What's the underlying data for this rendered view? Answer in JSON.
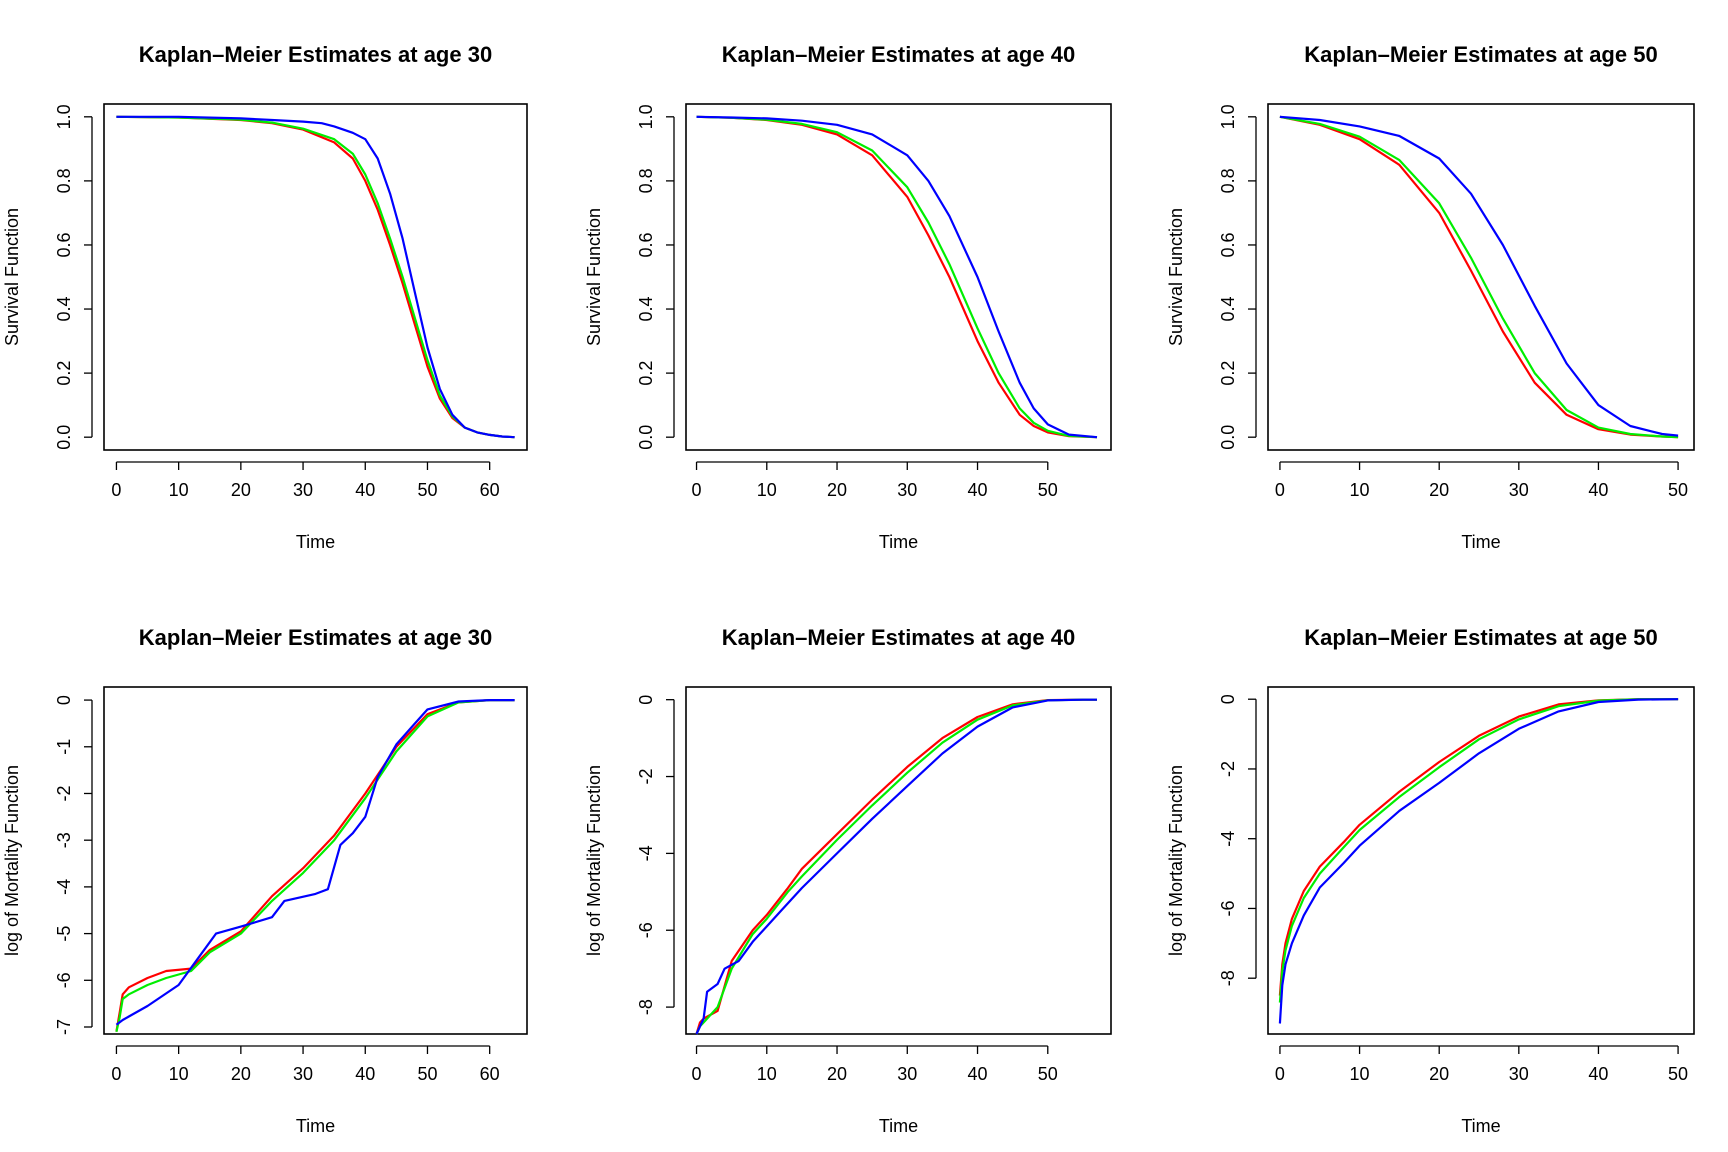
{
  "figure": {
    "series_colors": {
      "red": "#ff0000",
      "green": "#00ee00",
      "blue": "#0000ff"
    }
  },
  "chart_data": [
    {
      "type": "line",
      "title": "Kaplan–Meier Estimates at age 30",
      "xlabel": "Time",
      "ylabel": "Survival Function",
      "xlim": [
        -2,
        66
      ],
      "ylim": [
        -0.04,
        1.04
      ],
      "xticks": [
        0,
        10,
        20,
        30,
        40,
        50,
        60
      ],
      "yticks": [
        "0.0",
        "0.2",
        "0.4",
        "0.6",
        "0.8",
        "1.0"
      ],
      "grid": false,
      "series": [
        {
          "color": "#ff0000",
          "x": [
            0,
            10,
            20,
            25,
            30,
            35,
            38,
            40,
            42,
            44,
            46,
            48,
            50,
            52,
            54,
            56,
            58,
            60,
            62,
            64
          ],
          "y": [
            1.0,
            0.998,
            0.99,
            0.98,
            0.96,
            0.92,
            0.87,
            0.8,
            0.71,
            0.6,
            0.48,
            0.35,
            0.22,
            0.12,
            0.06,
            0.03,
            0.015,
            0.007,
            0.002,
            0.0
          ]
        },
        {
          "color": "#00ee00",
          "x": [
            0,
            10,
            20,
            25,
            30,
            35,
            38,
            40,
            42,
            44,
            46,
            48,
            50,
            52,
            54,
            56,
            58,
            60,
            62,
            64
          ],
          "y": [
            1.0,
            0.998,
            0.991,
            0.982,
            0.963,
            0.93,
            0.885,
            0.82,
            0.73,
            0.62,
            0.5,
            0.37,
            0.24,
            0.13,
            0.065,
            0.03,
            0.015,
            0.007,
            0.002,
            0.0
          ]
        },
        {
          "color": "#0000ff",
          "x": [
            0,
            10,
            20,
            25,
            30,
            33,
            35,
            38,
            40,
            42,
            44,
            46,
            48,
            50,
            52,
            54,
            56,
            58,
            60,
            62,
            64
          ],
          "y": [
            1.0,
            1.0,
            0.995,
            0.99,
            0.985,
            0.98,
            0.97,
            0.95,
            0.93,
            0.87,
            0.76,
            0.62,
            0.45,
            0.28,
            0.15,
            0.07,
            0.03,
            0.015,
            0.007,
            0.002,
            0.0
          ]
        }
      ]
    },
    {
      "type": "line",
      "title": "Kaplan–Meier Estimates at age 40",
      "xlabel": "Time",
      "ylabel": "Survival Function",
      "xlim": [
        -1.5,
        59
      ],
      "ylim": [
        -0.04,
        1.04
      ],
      "xticks": [
        0,
        10,
        20,
        30,
        40,
        50
      ],
      "yticks": [
        "0.0",
        "0.2",
        "0.4",
        "0.6",
        "0.8",
        "1.0"
      ],
      "grid": false,
      "series": [
        {
          "color": "#ff0000",
          "x": [
            0,
            5,
            10,
            15,
            20,
            25,
            30,
            33,
            36,
            40,
            43,
            46,
            48,
            50,
            53,
            57
          ],
          "y": [
            1.0,
            0.997,
            0.99,
            0.975,
            0.945,
            0.88,
            0.75,
            0.63,
            0.5,
            0.3,
            0.17,
            0.07,
            0.035,
            0.015,
            0.003,
            0.0
          ]
        },
        {
          "color": "#00ee00",
          "x": [
            0,
            5,
            10,
            15,
            20,
            25,
            30,
            33,
            36,
            40,
            43,
            46,
            48,
            50,
            53,
            57
          ],
          "y": [
            1.0,
            0.997,
            0.991,
            0.978,
            0.952,
            0.895,
            0.78,
            0.67,
            0.54,
            0.34,
            0.2,
            0.09,
            0.045,
            0.02,
            0.004,
            0.0
          ]
        },
        {
          "color": "#0000ff",
          "x": [
            0,
            5,
            10,
            15,
            20,
            25,
            30,
            33,
            36,
            40,
            43,
            46,
            48,
            50,
            53,
            57
          ],
          "y": [
            1.0,
            0.998,
            0.995,
            0.988,
            0.975,
            0.945,
            0.88,
            0.8,
            0.69,
            0.5,
            0.33,
            0.17,
            0.09,
            0.04,
            0.008,
            0.0
          ]
        }
      ]
    },
    {
      "type": "line",
      "title": "Kaplan–Meier Estimates at age 50",
      "xlabel": "Time",
      "ylabel": "Survival Function",
      "xlim": [
        -1.5,
        52
      ],
      "ylim": [
        -0.04,
        1.04
      ],
      "xticks": [
        0,
        10,
        20,
        30,
        40,
        50
      ],
      "yticks": [
        "0.0",
        "0.2",
        "0.4",
        "0.6",
        "0.8",
        "1.0"
      ],
      "grid": false,
      "series": [
        {
          "color": "#ff0000",
          "x": [
            0,
            5,
            10,
            15,
            20,
            24,
            28,
            32,
            36,
            40,
            44,
            48,
            50
          ],
          "y": [
            1.0,
            0.975,
            0.93,
            0.85,
            0.7,
            0.52,
            0.33,
            0.17,
            0.07,
            0.025,
            0.008,
            0.002,
            0.0
          ]
        },
        {
          "color": "#00ee00",
          "x": [
            0,
            5,
            10,
            15,
            20,
            24,
            28,
            32,
            36,
            40,
            44,
            48,
            50
          ],
          "y": [
            1.0,
            0.978,
            0.938,
            0.865,
            0.73,
            0.56,
            0.37,
            0.2,
            0.085,
            0.03,
            0.01,
            0.002,
            0.0
          ]
        },
        {
          "color": "#0000ff",
          "x": [
            0,
            5,
            10,
            15,
            20,
            24,
            28,
            32,
            36,
            40,
            44,
            48,
            50
          ],
          "y": [
            1.0,
            0.99,
            0.97,
            0.94,
            0.87,
            0.76,
            0.6,
            0.41,
            0.23,
            0.1,
            0.035,
            0.01,
            0.005
          ]
        }
      ]
    },
    {
      "type": "line",
      "title": "Kaplan–Meier Estimates at age 30",
      "xlabel": "Time",
      "ylabel": "log of Mortality Function",
      "xlim": [
        -2,
        66
      ],
      "ylim": [
        -7.15,
        0.28
      ],
      "xticks": [
        0,
        10,
        20,
        30,
        40,
        50,
        60
      ],
      "yticks": [
        "0",
        "-1",
        "-2",
        "-3",
        "-4",
        "-5",
        "-6",
        "-7"
      ],
      "grid": false,
      "series": [
        {
          "color": "#ff0000",
          "x": [
            0,
            0.5,
            1,
            2,
            5,
            8,
            12,
            15,
            20,
            25,
            30,
            35,
            40,
            45,
            50,
            55,
            60,
            64
          ],
          "y": [
            -7.1,
            -6.7,
            -6.3,
            -6.15,
            -5.95,
            -5.8,
            -5.75,
            -5.35,
            -4.95,
            -4.2,
            -3.6,
            -2.9,
            -2.0,
            -1.0,
            -0.3,
            -0.05,
            0.0,
            0.0
          ]
        },
        {
          "color": "#00ee00",
          "x": [
            0,
            0.5,
            1,
            2,
            5,
            8,
            12,
            15,
            20,
            25,
            30,
            35,
            40,
            45,
            50,
            55,
            60,
            64
          ],
          "y": [
            -7.1,
            -6.8,
            -6.4,
            -6.3,
            -6.1,
            -5.95,
            -5.8,
            -5.4,
            -5.0,
            -4.3,
            -3.7,
            -3.0,
            -2.1,
            -1.1,
            -0.35,
            -0.05,
            0.0,
            0.0
          ]
        },
        {
          "color": "#0000ff",
          "x": [
            0,
            1,
            5,
            10,
            13,
            16,
            20,
            25,
            27,
            32,
            34,
            36,
            38,
            40,
            42,
            45,
            48,
            50,
            55,
            60,
            64
          ],
          "y": [
            -6.95,
            -6.85,
            -6.55,
            -6.1,
            -5.55,
            -5.0,
            -4.85,
            -4.65,
            -4.3,
            -4.15,
            -4.05,
            -3.1,
            -2.85,
            -2.5,
            -1.65,
            -0.95,
            -0.5,
            -0.2,
            -0.03,
            0.0,
            0.0
          ]
        }
      ]
    },
    {
      "type": "line",
      "title": "Kaplan–Meier Estimates at age 40",
      "xlabel": "Time",
      "ylabel": "log of Mortality Function",
      "xlim": [
        -1.5,
        59
      ],
      "ylim": [
        -8.7,
        0.33
      ],
      "xticks": [
        0,
        10,
        20,
        30,
        40,
        50
      ],
      "yticks": [
        "0",
        "-2",
        "-4",
        "-6",
        "-8"
      ],
      "grid": false,
      "series": [
        {
          "color": "#ff0000",
          "x": [
            0,
            0.5,
            1,
            3,
            5,
            8,
            10,
            13,
            15,
            20,
            25,
            30,
            35,
            40,
            45,
            50,
            55,
            57
          ],
          "y": [
            -8.7,
            -8.4,
            -8.3,
            -8.1,
            -6.8,
            -6.0,
            -5.6,
            -4.9,
            -4.4,
            -3.5,
            -2.6,
            -1.75,
            -1.0,
            -0.45,
            -0.12,
            -0.01,
            0.0,
            0.0
          ]
        },
        {
          "color": "#00ee00",
          "x": [
            0,
            0.5,
            1,
            3,
            5,
            8,
            10,
            13,
            15,
            20,
            25,
            30,
            35,
            40,
            45,
            50,
            55,
            57
          ],
          "y": [
            -8.7,
            -8.5,
            -8.4,
            -8.0,
            -7.0,
            -6.1,
            -5.7,
            -5.0,
            -4.6,
            -3.65,
            -2.75,
            -1.9,
            -1.12,
            -0.52,
            -0.15,
            -0.015,
            0.0,
            0.0
          ]
        },
        {
          "color": "#0000ff",
          "x": [
            0,
            1,
            1.5,
            3,
            4,
            6,
            8,
            10,
            12,
            15,
            20,
            25,
            30,
            35,
            40,
            45,
            50,
            55,
            57
          ],
          "y": [
            -8.7,
            -8.3,
            -7.6,
            -7.4,
            -7.0,
            -6.8,
            -6.3,
            -5.9,
            -5.5,
            -4.9,
            -4.0,
            -3.1,
            -2.25,
            -1.4,
            -0.7,
            -0.2,
            -0.02,
            0.0,
            0.0
          ]
        }
      ]
    },
    {
      "type": "line",
      "title": "Kaplan–Meier Estimates at age 50",
      "xlabel": "Time",
      "ylabel": "log of Mortality Function",
      "xlim": [
        -1.5,
        52
      ],
      "ylim": [
        -9.6,
        0.35
      ],
      "xticks": [
        0,
        10,
        20,
        30,
        40,
        50
      ],
      "yticks": [
        "0",
        "-2",
        "-4",
        "-6",
        "-8"
      ],
      "grid": false,
      "series": [
        {
          "color": "#ff0000",
          "x": [
            0,
            0.3,
            0.7,
            1.5,
            3,
            5,
            8,
            10,
            15,
            20,
            25,
            30,
            35,
            40,
            45,
            50
          ],
          "y": [
            -8.5,
            -7.6,
            -7.0,
            -6.3,
            -5.5,
            -4.8,
            -4.1,
            -3.6,
            -2.65,
            -1.8,
            -1.05,
            -0.5,
            -0.15,
            -0.03,
            0.0,
            0.0
          ]
        },
        {
          "color": "#00ee00",
          "x": [
            0,
            0.3,
            0.7,
            1.5,
            3,
            5,
            8,
            10,
            15,
            20,
            25,
            30,
            35,
            40,
            45,
            50
          ],
          "y": [
            -8.7,
            -7.8,
            -7.2,
            -6.5,
            -5.7,
            -5.0,
            -4.25,
            -3.75,
            -2.8,
            -1.95,
            -1.15,
            -0.58,
            -0.2,
            -0.04,
            0.0,
            0.0
          ]
        },
        {
          "color": "#0000ff",
          "x": [
            0,
            0.3,
            0.7,
            1.5,
            3,
            5,
            8,
            10,
            15,
            20,
            25,
            30,
            35,
            40,
            45,
            50
          ],
          "y": [
            -9.3,
            -8.2,
            -7.6,
            -7.0,
            -6.2,
            -5.4,
            -4.7,
            -4.2,
            -3.2,
            -2.4,
            -1.55,
            -0.85,
            -0.35,
            -0.08,
            -0.01,
            0.0
          ]
        }
      ]
    }
  ]
}
